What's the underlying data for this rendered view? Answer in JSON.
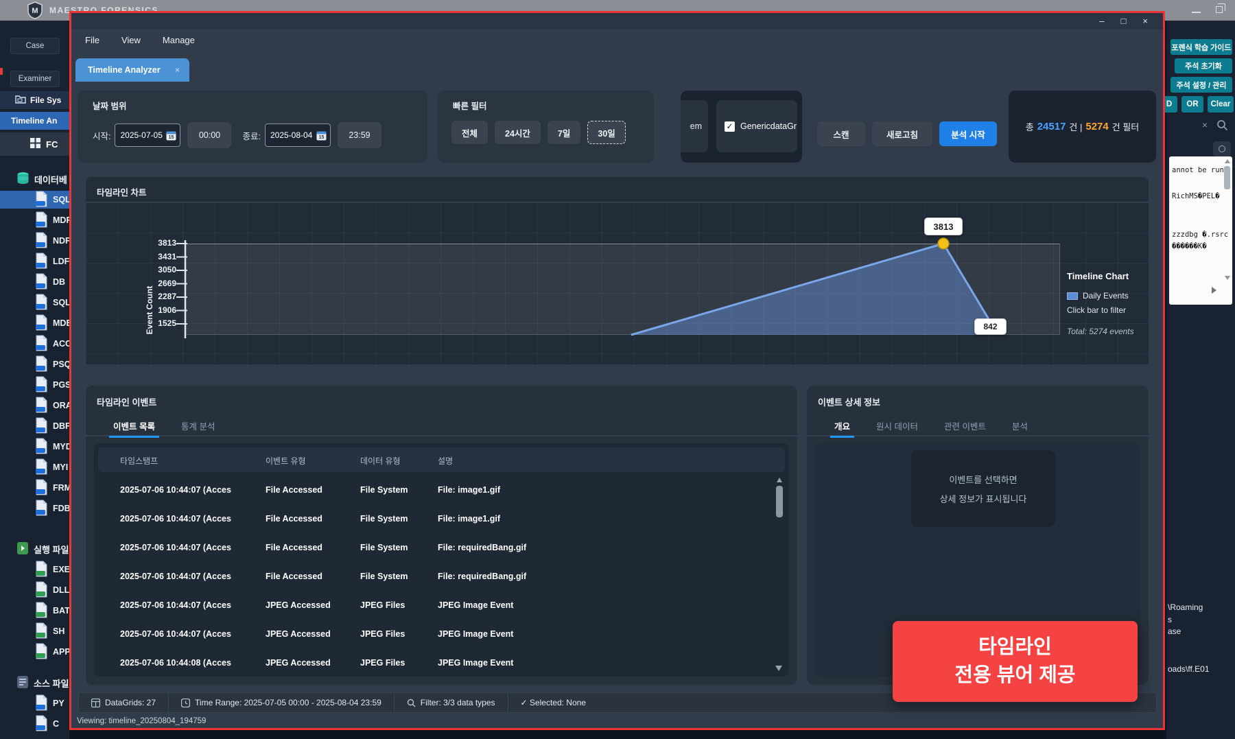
{
  "topbar": {
    "brand": "MAESTRO FORENSICS"
  },
  "sidebar": {
    "case": "Case",
    "examiner": "Examiner",
    "file_system": "File Sys",
    "timeline": "Timeline An",
    "fc": "FC",
    "sections": [
      {
        "label": "데이터베",
        "items": [
          "SQL",
          "MDF",
          "NDF",
          "LDF",
          "DB",
          "SQL",
          "MDB",
          "ACC",
          "PSQ",
          "PGS",
          "ORA",
          "DBF",
          "MYD",
          "MYI",
          "FRM",
          "FDB"
        ],
        "selected_index": 0
      },
      {
        "label": "실행 파일",
        "items": [
          "EXE",
          "DLL",
          "BAT",
          "SH",
          "APP"
        ],
        "selected_index": -1
      },
      {
        "label": "소스 파일",
        "items": [
          "PY",
          "C"
        ],
        "selected_index": -1
      }
    ]
  },
  "dialog": {
    "controls": {
      "min": "–",
      "max": "□",
      "close": "×"
    },
    "menu": [
      "File",
      "View",
      "Manage"
    ],
    "tab_title": "Timeline Analyzer",
    "tab_close": "×",
    "date_range": {
      "title": "날짜 범위",
      "start_label": "시작:",
      "start_date": "2025-07-05",
      "start_time": "00:00",
      "end_label": "종료:",
      "end_date": "2025-08-04",
      "end_time": "23:59"
    },
    "quick_filter": {
      "title": "빠른 필터",
      "options": [
        "전체",
        "24시간",
        "7일",
        "30일"
      ],
      "active_index": 3
    },
    "sources": {
      "clipped_item": "em",
      "checkbox_item": "GenericdataGr",
      "checkbox_checked": "✓"
    },
    "actions": {
      "scan": "스캔",
      "refresh": "새로고침",
      "analyze": "분석 시작"
    },
    "stats": {
      "prefix": "총",
      "total": "24517",
      "unit1": "건 |",
      "filtered": "5274",
      "unit2": "건 필터"
    }
  },
  "chart": {
    "title": "타임라인 차트",
    "ylabel": "Event Count",
    "yticks": [
      "3813",
      "3431",
      "3050",
      "2669",
      "2287",
      "1906",
      "1525"
    ],
    "peak_label": "3813",
    "end_label": "842",
    "legend": {
      "title": "Timeline Chart",
      "series": "Daily Events",
      "hint": "Click bar to filter",
      "total": "Total: 5274 events"
    }
  },
  "chart_data": {
    "type": "line",
    "series": [
      {
        "name": "Daily Events",
        "points": [
          {
            "x": "2025-07-21",
            "y": 0
          },
          {
            "x": "2025-08-02",
            "y": 3813
          },
          {
            "x": "2025-08-04",
            "y": 842
          }
        ]
      }
    ],
    "title": "타임라인 차트",
    "xlabel": "",
    "ylabel": "Event Count",
    "yticks": [
      3813,
      3431,
      3050,
      2669,
      2287,
      1906,
      1525
    ],
    "x_range": [
      "2025-07-05",
      "2025-08-04"
    ],
    "total_events": 5274,
    "legend_position": "right",
    "grid": true
  },
  "events": {
    "title": "타임라인 이벤트",
    "tabs": [
      "이벤트 목록",
      "통계 분석"
    ],
    "columns": [
      "타임스탬프",
      "이벤트 유형",
      "데이터 유형",
      "설명"
    ],
    "rows": [
      {
        "ts": "2025-07-06 10:44:07 (Acces",
        "type": "File Accessed",
        "dtype": "File System",
        "desc": "File: image1.gif"
      },
      {
        "ts": "2025-07-06 10:44:07 (Acces",
        "type": "File Accessed",
        "dtype": "File System",
        "desc": "File: image1.gif"
      },
      {
        "ts": "2025-07-06 10:44:07 (Acces",
        "type": "File Accessed",
        "dtype": "File System",
        "desc": "File: requiredBang.gif"
      },
      {
        "ts": "2025-07-06 10:44:07 (Acces",
        "type": "File Accessed",
        "dtype": "File System",
        "desc": "File: requiredBang.gif"
      },
      {
        "ts": "2025-07-06 10:44:07 (Acces",
        "type": "JPEG Accessed",
        "dtype": "JPEG Files",
        "desc": "JPEG Image Event"
      },
      {
        "ts": "2025-07-06 10:44:07 (Acces",
        "type": "JPEG Accessed",
        "dtype": "JPEG Files",
        "desc": "JPEG Image Event"
      },
      {
        "ts": "2025-07-06 10:44:08 (Acces",
        "type": "JPEG Accessed",
        "dtype": "JPEG Files",
        "desc": "JPEG Image Event"
      }
    ]
  },
  "details": {
    "title": "이벤트 상세 정보",
    "tabs": [
      "개요",
      "원시 데이터",
      "관련 이벤트",
      "분석"
    ],
    "empty_line1": "이벤트를 선택하면",
    "empty_line2": "상세 정보가 표시됩니다"
  },
  "statusbar": {
    "datagrids": "DataGrids: 27",
    "time_range": "Time Range: 2025-07-05 00:00 - 2025-08-04 23:59",
    "filter": "Filter: 3/3 data types",
    "selected": "✓ Selected: None",
    "viewing": "Viewing: timeline_20250804_194759"
  },
  "overlay": {
    "line1": "타임라인",
    "line2": "전용 뷰어 제공"
  },
  "right_panel": {
    "buttons": [
      "포렌식 학습 가이드",
      "주석 초기화",
      "주석 설정 / 관리"
    ],
    "filter_buttons": [
      "D",
      "OR",
      "Clear"
    ],
    "search_clear": "×",
    "hex_lines": [
      "annot be run",
      "RichMS�PEL�",
      "zzzdbg �.rsrc",
      "������K�"
    ],
    "paths": [
      "\\Roaming",
      "s",
      "ase",
      "oads\\ff.E01"
    ]
  }
}
